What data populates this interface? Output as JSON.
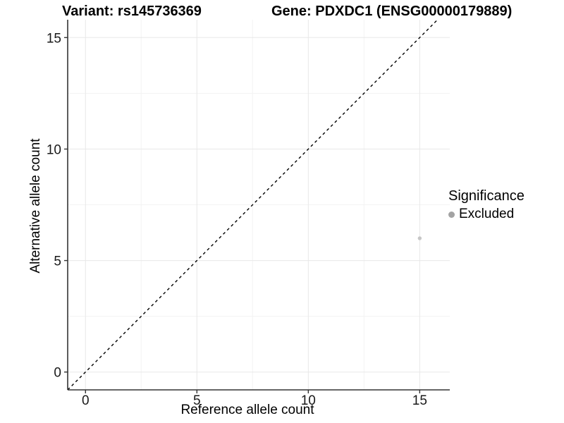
{
  "chart_data": {
    "type": "scatter",
    "title_left": "Variant: rs145736369",
    "title_right": "Gene: PDXDC1 (ENSG00000179889)",
    "xlabel": "Reference allele count",
    "ylabel": "Alternative allele count",
    "xlim": [
      -0.8,
      16.35
    ],
    "ylim": [
      -0.8,
      15.8
    ],
    "xticks": [
      0,
      5,
      10,
      15
    ],
    "yticks": [
      0,
      5,
      10,
      15
    ],
    "minor_ticks_x": [
      2.5,
      7.5,
      12.5
    ],
    "minor_ticks_y": [
      2.5,
      7.5,
      12.5
    ],
    "grid": "major+minor",
    "legend": {
      "title": "Significance",
      "position": "right",
      "entries": [
        {
          "label": "Excluded",
          "swatch_color": "#a3a3a3"
        }
      ]
    },
    "series": [
      {
        "name": "Excluded",
        "point_color": "#c6c6c6",
        "point_radius": 2.7,
        "points": [
          [
            15,
            6
          ]
        ]
      }
    ],
    "reference_line": {
      "kind": "identity y = x",
      "style": "dashed",
      "color": "#000000",
      "dash": "4 4"
    }
  },
  "colors": {
    "background": "#ffffff",
    "grid_major": "#e8e8e8",
    "grid_minor": "#f3f3f3",
    "axis_line": "#333333",
    "tick_mark": "#333333",
    "tick_text": "#191919",
    "title_text": "#000000"
  }
}
